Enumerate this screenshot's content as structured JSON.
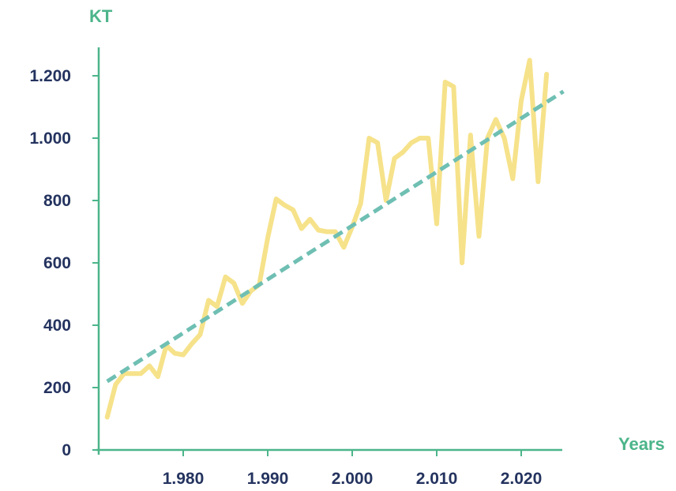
{
  "chart_data": {
    "type": "line",
    "ylabel": "KT",
    "xlabel": "Years",
    "xlim": [
      1970.5,
      2025
    ],
    "ylim": [
      0,
      1250
    ],
    "x_ticks": [
      1980,
      1990,
      2000,
      2010,
      2020
    ],
    "x_tick_labels": [
      "1.980",
      "1.990",
      "2.000",
      "2.010",
      "2.020"
    ],
    "y_ticks": [
      0,
      200,
      400,
      600,
      800,
      1000,
      1200
    ],
    "y_tick_labels": [
      "0",
      "200",
      "400",
      "600",
      "800",
      "1.000",
      "1.200"
    ],
    "grid": false,
    "series": [
      {
        "kind": "line",
        "color": "#f6e28a",
        "points": [
          [
            1971,
            105
          ],
          [
            1972,
            210
          ],
          [
            1973,
            245
          ],
          [
            1974,
            245
          ],
          [
            1975,
            245
          ],
          [
            1976,
            270
          ],
          [
            1977,
            235
          ],
          [
            1978,
            335
          ],
          [
            1979,
            310
          ],
          [
            1980,
            305
          ],
          [
            1981,
            340
          ],
          [
            1982,
            370
          ],
          [
            1983,
            480
          ],
          [
            1984,
            460
          ],
          [
            1985,
            555
          ],
          [
            1986,
            535
          ],
          [
            1987,
            470
          ],
          [
            1988,
            510
          ],
          [
            1989,
            530
          ],
          [
            1990,
            680
          ],
          [
            1991,
            805
          ],
          [
            1992,
            785
          ],
          [
            1993,
            770
          ],
          [
            1994,
            710
          ],
          [
            1995,
            740
          ],
          [
            1996,
            705
          ],
          [
            1997,
            700
          ],
          [
            1998,
            700
          ],
          [
            1999,
            650
          ],
          [
            2000,
            715
          ],
          [
            2001,
            790
          ],
          [
            2002,
            1000
          ],
          [
            2003,
            985
          ],
          [
            2004,
            800
          ],
          [
            2005,
            935
          ],
          [
            2006,
            955
          ],
          [
            2007,
            985
          ],
          [
            2008,
            1000
          ],
          [
            2009,
            1000
          ],
          [
            2010,
            725
          ],
          [
            2011,
            1180
          ],
          [
            2012,
            1165
          ],
          [
            2013,
            600
          ],
          [
            2014,
            1010
          ],
          [
            2015,
            685
          ],
          [
            2016,
            1000
          ],
          [
            2017,
            1060
          ],
          [
            2018,
            1000
          ],
          [
            2019,
            870
          ],
          [
            2020,
            1120
          ],
          [
            2021,
            1250
          ],
          [
            2022,
            860
          ],
          [
            2023,
            1205
          ]
        ]
      },
      {
        "kind": "trend",
        "color": "#6fbfb3",
        "dashed": true,
        "points": [
          [
            1971,
            220
          ],
          [
            2025,
            1150
          ]
        ]
      }
    ]
  },
  "colors": {
    "axis": "#4cb58a",
    "tick_text": "#24335f",
    "axis_title": "#4cb58a"
  }
}
